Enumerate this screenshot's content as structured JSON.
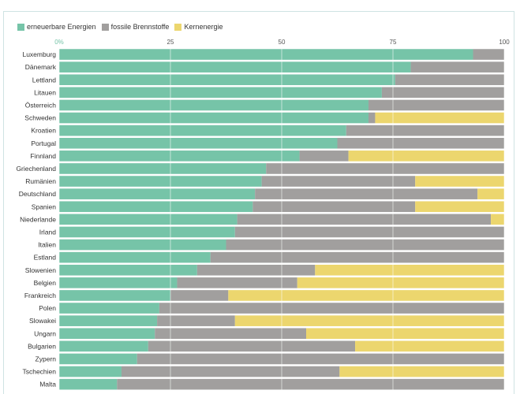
{
  "chart_data": {
    "type": "bar",
    "orientation": "horizontal",
    "stacked": true,
    "title": "",
    "xlabel": "",
    "ylabel": "",
    "xlim": [
      0,
      100
    ],
    "ticks": [
      "0%",
      "25",
      "50",
      "75",
      "100"
    ],
    "grid": true,
    "legend": "top-left",
    "categories": [
      "Luxemburg",
      "Dänemark",
      "Lettland",
      "Litauen",
      "Österreich",
      "Schweden",
      "Kroatien",
      "Portugal",
      "Finnland",
      "Griechenland",
      "Rumänien",
      "Deutschland",
      "Spanien",
      "Niederlande",
      "Irland",
      "Italien",
      "Estland",
      "Slowenien",
      "Belgien",
      "Frankreich",
      "Polen",
      "Slowakei",
      "Ungarn",
      "Bulgarien",
      "Zypern",
      "Tschechien",
      "Malta"
    ],
    "series": [
      {
        "name": "erneuerbare Energien",
        "color": "#76c4a8",
        "values": [
          93,
          79,
          75.5,
          72.5,
          69.5,
          69.5,
          64.5,
          62.5,
          54,
          46.5,
          45.5,
          44,
          43.5,
          40,
          39.5,
          37.5,
          34,
          31,
          26.5,
          25,
          22.5,
          22,
          21.5,
          20,
          17.5,
          14,
          13
        ]
      },
      {
        "name": "fossile Brennstoffe",
        "color": "#a19f9e",
        "values": [
          7,
          21,
          24.5,
          27.5,
          30.5,
          1.5,
          35.5,
          37.5,
          11,
          53.5,
          34.5,
          50,
          36.5,
          57,
          60.5,
          62.5,
          66,
          26.5,
          27,
          13,
          77.5,
          17.5,
          34,
          46.5,
          82.5,
          49,
          87
        ]
      },
      {
        "name": "Kernenergie",
        "color": "#ecd66e",
        "values": [
          0,
          0,
          0,
          0,
          0,
          29,
          0,
          0,
          35,
          0,
          20,
          6,
          20,
          3,
          0,
          0,
          0,
          42.5,
          46.5,
          62,
          0,
          60.5,
          44.5,
          33.5,
          0,
          37,
          0
        ]
      }
    ]
  }
}
